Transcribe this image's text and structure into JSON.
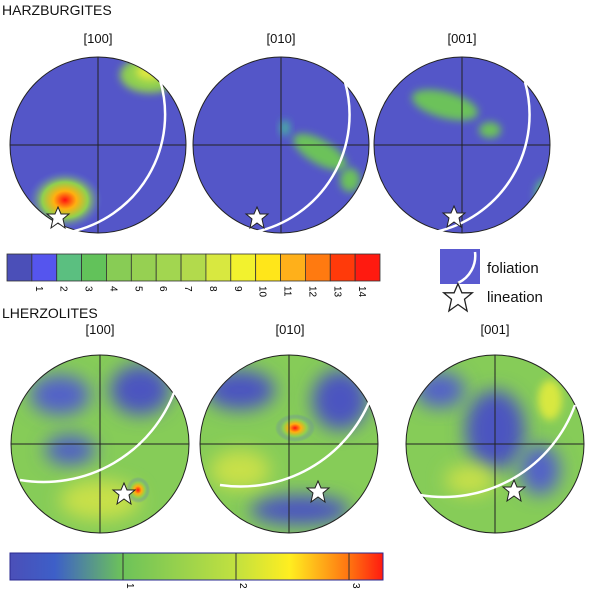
{
  "sections": {
    "harzburgites": {
      "title": "HARZBURGITES",
      "plots": [
        "[100]",
        "[010]",
        "[001]"
      ]
    },
    "lherzolites": {
      "title": "LHERZOLITES",
      "plots": [
        "[100]",
        "[010]",
        "[001]"
      ]
    }
  },
  "colorbar_harzburgites": {
    "ticks": [
      "1",
      "2",
      "3",
      "4",
      "5",
      "6",
      "7",
      "8",
      "9",
      "10",
      "11",
      "12",
      "13",
      "14"
    ],
    "colors": [
      "#4b4fb8",
      "#55e",
      "#5bbf80",
      "#62c25a",
      "#88cc55",
      "#96d052",
      "#a2d650",
      "#b2da4c",
      "#d8e840",
      "#f2f22e",
      "#ffe61a",
      "#ffb01a",
      "#ff7a10",
      "#ff3a0a",
      "#ff1a10"
    ]
  },
  "colorbar_lherzolites": {
    "ticks": [
      "1",
      "2",
      "3"
    ]
  },
  "legend": {
    "foliation": "foliation",
    "lineation": "lineation",
    "colors": {
      "foliation_swatch": "#5a5ad0"
    }
  }
}
